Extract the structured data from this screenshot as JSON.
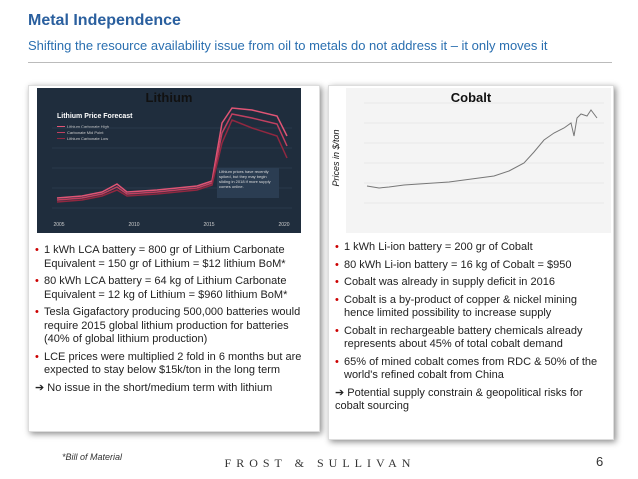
{
  "header": {
    "title": "Metal Independence",
    "subtitle": "Shifting the resource availability issue from oil to metals do not address it – it only moves it"
  },
  "panels": [
    {
      "label": "Lithium",
      "image": {
        "title": "Lithium Price Forecast",
        "legend": [
          "Lithium Carbonate High",
          "Carbonate Mid Point",
          "Lithium Carbonate Low"
        ],
        "note": "Lithium prices have recently spiked, but they may begin sliding in 2018 if more supply comes online.",
        "years": [
          "2005",
          "2010",
          "2015",
          "2020"
        ]
      },
      "bullets": [
        "1 kWh LCA battery = 800 gr of Lithium Carbonate Equivalent = 150 gr of Lithium = $12 lithium BoM*",
        "80 kWh LCA battery = 64 kg of Lithium Carbonate Equivalent = 12 kg of Lithium = $960 lithium BoM*",
        "Tesla Gigafactory producing 500,000 batteries would require 2015 global lithium production for batteries (40% of global lithium production)",
        "LCE prices were multiplied 2 fold in 6 months but are expected to stay below $15k/ton in the long term"
      ],
      "conclusion": "➔ No issue in the short/medium term with lithium"
    },
    {
      "label": "Cobalt",
      "axis_label": "Prices in $/ton",
      "bullets": [
        "1 kWh Li-ion battery = 200 gr of Cobalt",
        "80 kWh Li-ion battery = 16 kg of Cobalt = $950",
        "Cobalt was already in supply deficit in 2016",
        "Cobalt is a by-product of copper & nickel mining hence limited possibility to increase supply",
        "Cobalt in rechargeable battery chemicals already represents about 45% of total cobalt demand",
        "65% of mined cobalt comes from RDC & 50% of the world's refined cobalt from China"
      ],
      "conclusion": "➔ Potential supply constrain & geopolitical risks for cobalt sourcing"
    }
  ],
  "footer": {
    "note": "*Bill of Material",
    "brand": "FROST & SULLIVAN",
    "page": "6"
  }
}
